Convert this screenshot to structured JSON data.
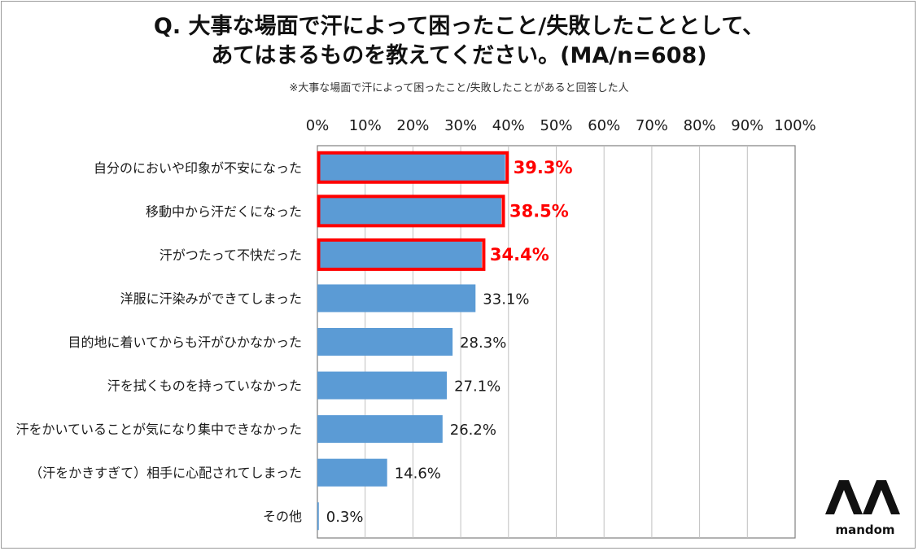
{
  "title_line1": "Q. 大事な場面で汗によって困ったこと/失敗したこととして、",
  "title_line2": "あてはまるものを教えてください。(MA/n=608)",
  "note": "※大事な場面で汗によって困ったこと/失敗したことがあると回答した人",
  "brand": "mandom",
  "colors": {
    "bar": "#5b9bd5",
    "highlight": "#ff0000",
    "grid": "#c0c0c0"
  },
  "chart_data": {
    "type": "bar",
    "orientation": "horizontal",
    "xlim": [
      0,
      100
    ],
    "ticks": [
      "0%",
      "10%",
      "20%",
      "30%",
      "40%",
      "50%",
      "60%",
      "70%",
      "80%",
      "90%",
      "100%"
    ],
    "categories": [
      "自分のにおいや印象が不安になった",
      "移動中から汗だくになった",
      "汗がつたって不快だった",
      "洋服に汗染みができてしまった",
      "目的地に着いてからも汗がひかなかった",
      "汗を拭くものを持っていなかった",
      "汗をかいていることが気になり集中できなかった",
      "（汗をかきすぎて）相手に心配されてしまった",
      "その他"
    ],
    "values": [
      39.3,
      38.5,
      34.4,
      33.1,
      28.3,
      27.1,
      26.2,
      14.6,
      0.3
    ],
    "labels": [
      "39.3%",
      "38.5%",
      "34.4%",
      "33.1%",
      "28.3%",
      "27.1%",
      "26.2%",
      "14.6%",
      "0.3%"
    ],
    "highlighted": [
      true,
      true,
      true,
      false,
      false,
      false,
      false,
      false,
      false
    ]
  }
}
